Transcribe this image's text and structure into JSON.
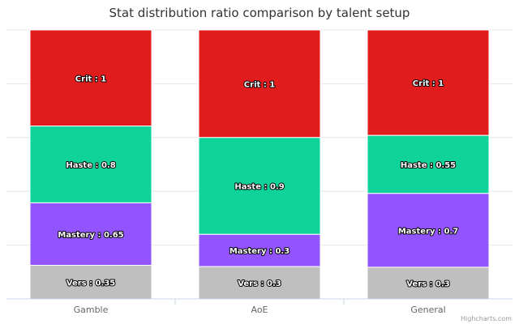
{
  "chart_data": {
    "type": "bar",
    "stacked": "percent",
    "title": "Stat distribution ratio comparison by talent setup",
    "categories": [
      "Gamble",
      "AoE",
      "General"
    ],
    "series": [
      {
        "name": "Crit",
        "values": [
          1,
          1,
          1
        ],
        "color": "#e01c1c"
      },
      {
        "name": "Haste",
        "values": [
          0.8,
          0.9,
          0.55
        ],
        "color": "#10d39a"
      },
      {
        "name": "Mastery",
        "values": [
          0.65,
          0.3,
          0.7
        ],
        "color": "#9254ff"
      },
      {
        "name": "Vers",
        "values": [
          0.35,
          0.3,
          0.3
        ],
        "color": "#bfbfbf"
      }
    ],
    "grid": true,
    "legend": "none",
    "credits": "Highcharts.com"
  }
}
